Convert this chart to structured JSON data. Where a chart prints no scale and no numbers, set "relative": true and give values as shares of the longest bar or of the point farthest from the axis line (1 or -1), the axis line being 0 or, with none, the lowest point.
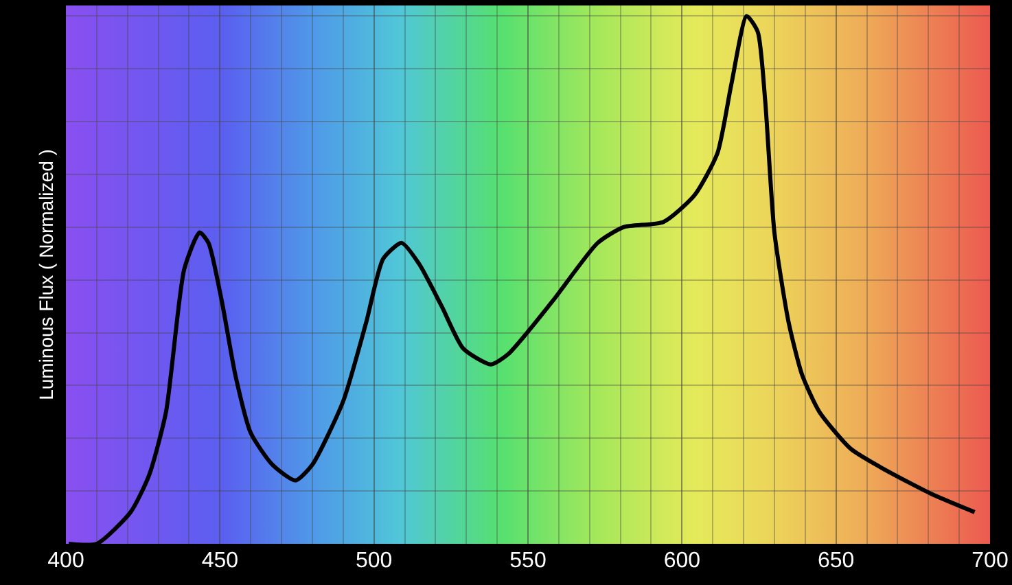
{
  "chart_data": {
    "type": "line",
    "ylabel": "Luminous Flux ( Normalized )",
    "relative": true,
    "grid": true,
    "xlim": [
      400,
      700
    ],
    "xticks": [
      400,
      450,
      500,
      550,
      600,
      650,
      700
    ],
    "series": [
      {
        "color": "#000000",
        "x": [
          400.9,
          410,
          421,
          427,
          432.5,
          438.4,
          443.4,
          446.3,
          450.6,
          455,
          460,
          467,
          474.5,
          480,
          490,
          497.5,
          503,
          509,
          514.7,
          522,
          529,
          538,
          543.7,
          558,
          572.6,
          581,
          594,
          604,
          611.5,
          616,
          621,
          624.6,
          627,
          630,
          634.6,
          639,
          644.6,
          654.8,
          666,
          680.8,
          695
        ],
        "values": [
          0,
          0,
          0.06,
          0.13,
          0.25,
          0.52,
          0.59,
          0.57,
          0.46,
          0.32,
          0.21,
          0.15,
          0.12,
          0.15,
          0.27,
          0.42,
          0.54,
          0.57,
          0.53,
          0.45,
          0.37,
          0.34,
          0.36,
          0.46,
          0.57,
          0.6,
          0.61,
          0.66,
          0.74,
          0.87,
          1,
          0.97,
          0.84,
          0.59,
          0.42,
          0.32,
          0.25,
          0.18,
          0.14,
          0.095,
          0.06
        ]
      }
    ]
  }
}
